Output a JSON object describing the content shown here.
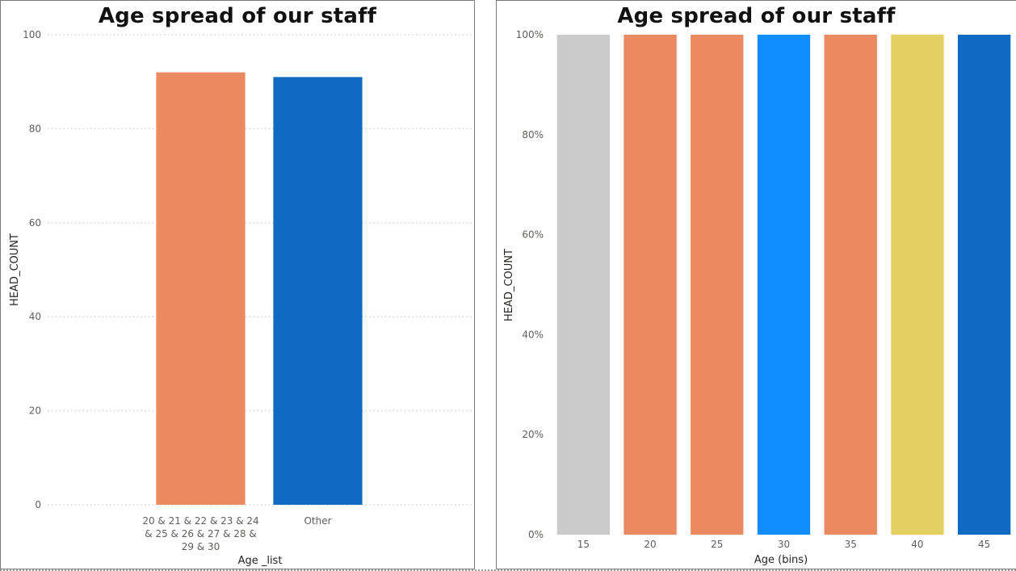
{
  "chart_data": [
    {
      "type": "bar",
      "title": "Age spread of our staff",
      "xlabel": "Age _list",
      "ylabel": "HEAD_COUNT",
      "ylim": [
        0,
        100
      ],
      "yticks": [
        "0",
        "20",
        "40",
        "60",
        "80",
        "100"
      ],
      "grid": true,
      "categories": [
        [
          "20 & 21 & 22 & 23 & 24",
          "& 25 & 26 & 27 & 28 &",
          "29 & 30"
        ],
        [
          "Other"
        ]
      ],
      "values": [
        92,
        91
      ],
      "colors": [
        "#EB8A60",
        "#0F6BC2"
      ]
    },
    {
      "type": "bar",
      "title": "Age spread of our staff",
      "xlabel": "Age (bins)",
      "ylabel": "HEAD_COUNT",
      "ylim": [
        0,
        1
      ],
      "yticks": [
        "0%",
        "20%",
        "40%",
        "60%",
        "80%",
        "100%"
      ],
      "grid": true,
      "stacked": "100%",
      "categories": [
        "15",
        "20",
        "25",
        "30",
        "35",
        "40",
        "45"
      ],
      "values": [
        1,
        1,
        1,
        1,
        1,
        1,
        1
      ],
      "colors": [
        "#CBCBCB",
        "#EB8A60",
        "#EB8A60",
        "#118DFF",
        "#EB8A60",
        "#E6CF62",
        "#0F6BC2"
      ]
    }
  ]
}
